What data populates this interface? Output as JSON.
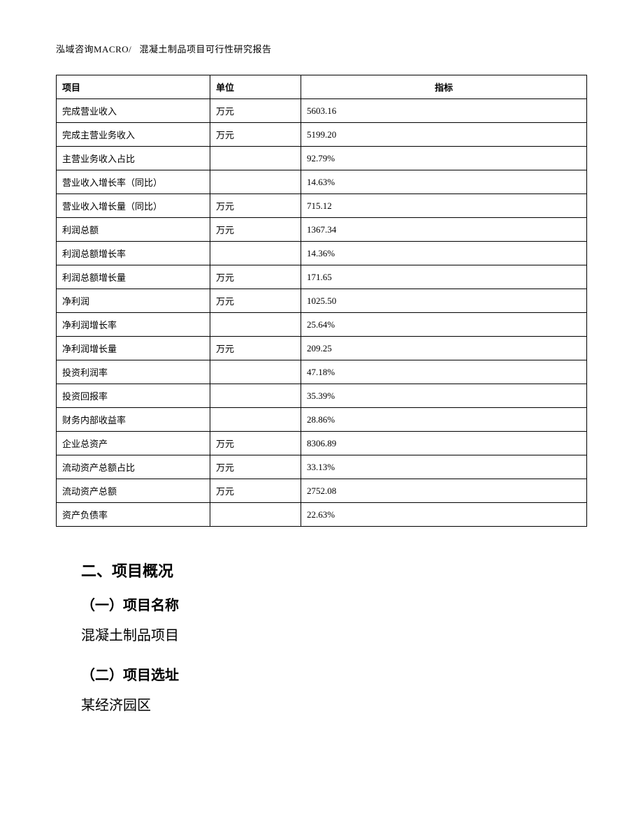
{
  "header": {
    "left": "泓域咨询MACRO/",
    "right": "混凝土制品项目可行性研究报告"
  },
  "table": {
    "columns": [
      {
        "label": "项目",
        "align": "left"
      },
      {
        "label": "单位",
        "align": "left"
      },
      {
        "label": "指标",
        "align": "center"
      }
    ],
    "rows": [
      {
        "item": "完成营业收入",
        "unit": "万元",
        "value": "5603.16"
      },
      {
        "item": "完成主营业务收入",
        "unit": "万元",
        "value": "5199.20"
      },
      {
        "item": "主营业务收入占比",
        "unit": "",
        "value": "92.79%"
      },
      {
        "item": "营业收入增长率（同比）",
        "unit": "",
        "value": "14.63%"
      },
      {
        "item": "营业收入增长量（同比）",
        "unit": "万元",
        "value": "715.12"
      },
      {
        "item": "利润总额",
        "unit": "万元",
        "value": "1367.34"
      },
      {
        "item": "利润总额增长率",
        "unit": "",
        "value": "14.36%"
      },
      {
        "item": "利润总额增长量",
        "unit": "万元",
        "value": "171.65"
      },
      {
        "item": "净利润",
        "unit": "万元",
        "value": "1025.50"
      },
      {
        "item": "净利润增长率",
        "unit": "",
        "value": "25.64%"
      },
      {
        "item": "净利润增长量",
        "unit": "万元",
        "value": "209.25"
      },
      {
        "item": "投资利润率",
        "unit": "",
        "value": "47.18%"
      },
      {
        "item": "投资回报率",
        "unit": "",
        "value": "35.39%"
      },
      {
        "item": "财务内部收益率",
        "unit": "",
        "value": "28.86%"
      },
      {
        "item": "企业总资产",
        "unit": "万元",
        "value": "8306.89"
      },
      {
        "item": "流动资产总额占比",
        "unit": "万元",
        "value": "33.13%"
      },
      {
        "item": "流动资产总额",
        "unit": "万元",
        "value": "2752.08"
      },
      {
        "item": "资产负债率",
        "unit": "",
        "value": "22.63%"
      }
    ]
  },
  "sections": {
    "main_heading": "二、项目概况",
    "sub1_heading": "（一）项目名称",
    "sub1_body": "混凝土制品项目",
    "sub2_heading": "（二）项目选址",
    "sub2_body": "某经济园区"
  },
  "style": {
    "page_bg": "#ffffff",
    "text_color": "#000000",
    "border_color": "#000000",
    "header_fontsize": 13,
    "table_fontsize": 13,
    "heading_fontsize": 22,
    "subheading_fontsize": 20,
    "body_fontsize": 20
  }
}
